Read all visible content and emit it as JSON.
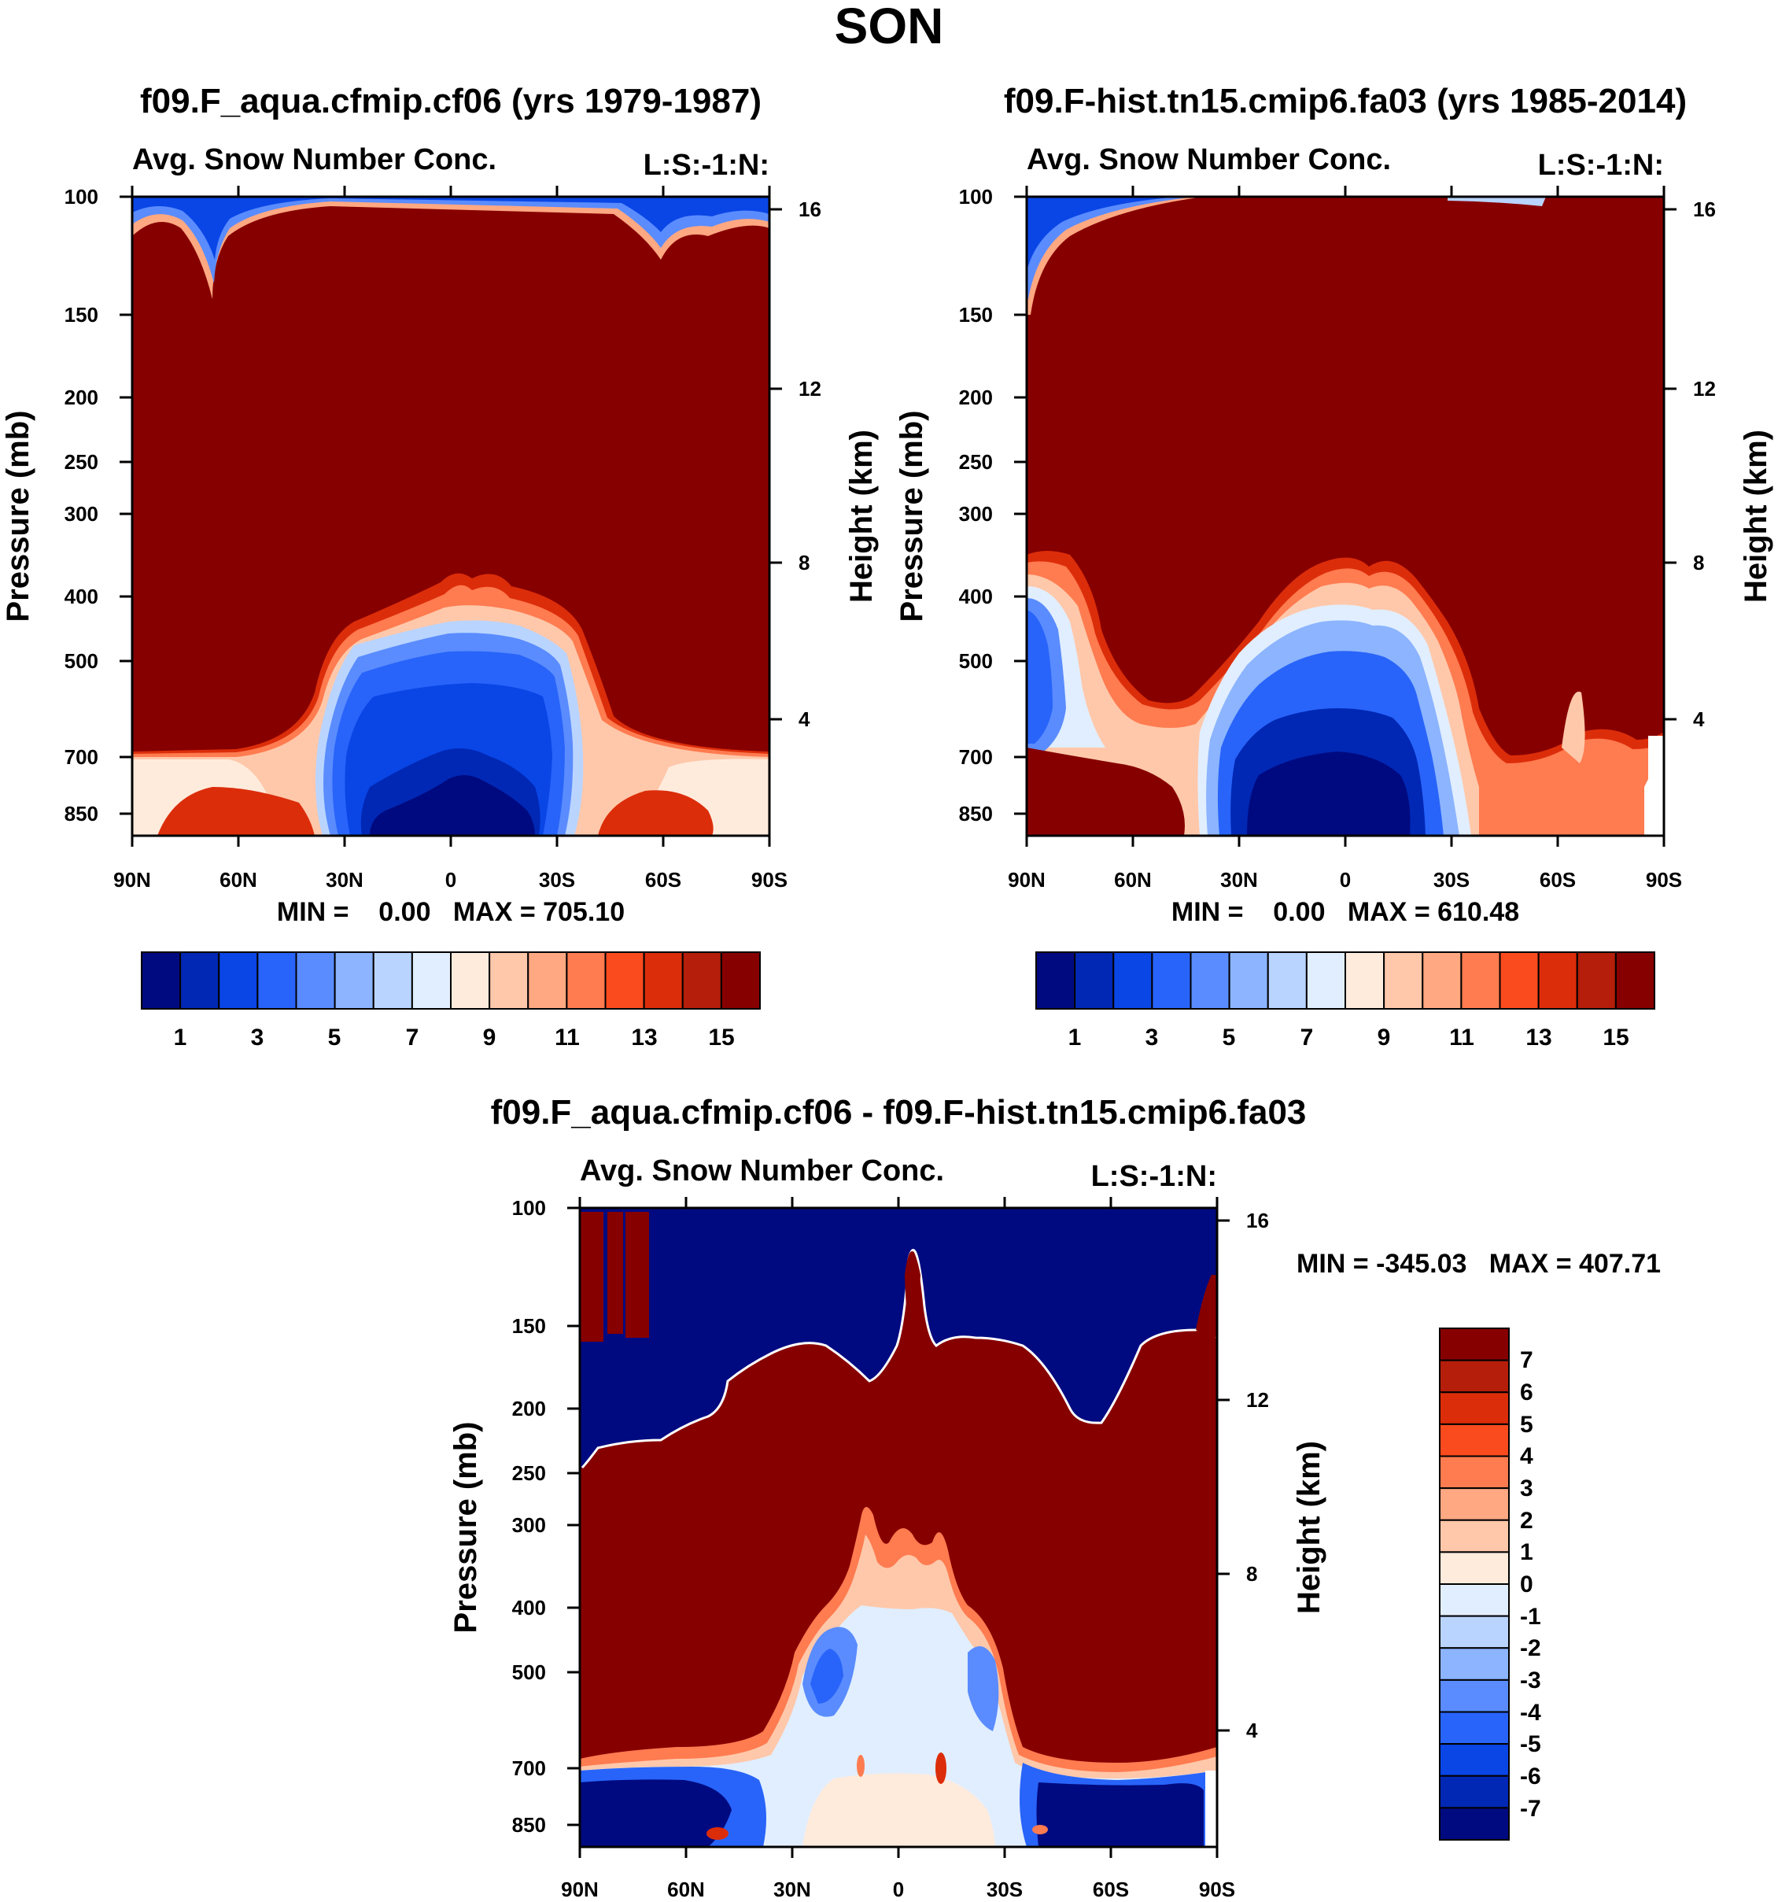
{
  "page_title": "SON",
  "chart_data": [
    {
      "type": "contour",
      "title": "f09.F_aqua.cfmip.cf06 (yrs 1979-1987)",
      "left_subtitle": "Avg. Snow Number Conc.",
      "right_subtitle": "L:S:-1:N:",
      "ylabel": "Pressure (mb)",
      "ylabel_right": "Height (km)",
      "x_ticks": [
        "90N",
        "60N",
        "30N",
        "0",
        "30S",
        "60S",
        "90S"
      ],
      "y_ticks": [
        "100",
        "150",
        "200",
        "250",
        "300",
        "400",
        "500",
        "700",
        "850"
      ],
      "y_ticks_right": [
        "16",
        "12",
        "8",
        "4"
      ],
      "min_max": "MIN =    0.00   MAX = 705.10",
      "colorbar_labels": [
        "1",
        "3",
        "5",
        "7",
        "9",
        "11",
        "13",
        "15"
      ],
      "colors": [
        "#000a80",
        "#0028b4",
        "#0a46e6",
        "#2864fa",
        "#5a8cff",
        "#8cb4ff",
        "#b9d4ff",
        "#e1eeff",
        "#ffebdc",
        "#ffc8aa",
        "#ffa882",
        "#ff7b50",
        "#fa4b1e",
        "#dc2d0a",
        "#b41e0a",
        "#870000"
      ]
    },
    {
      "type": "contour",
      "title": "f09.F-hist.tn15.cmip6.fa03 (yrs 1985-2014)",
      "left_subtitle": "Avg. Snow Number Conc.",
      "right_subtitle": "L:S:-1:N:",
      "ylabel": "Pressure (mb)",
      "ylabel_right": "Height (km)",
      "x_ticks": [
        "90N",
        "60N",
        "30N",
        "0",
        "30S",
        "60S",
        "90S"
      ],
      "y_ticks": [
        "100",
        "150",
        "200",
        "250",
        "300",
        "400",
        "500",
        "700",
        "850"
      ],
      "y_ticks_right": [
        "16",
        "12",
        "8",
        "4"
      ],
      "min_max": "MIN =    0.00   MAX = 610.48",
      "colorbar_labels": [
        "1",
        "3",
        "5",
        "7",
        "9",
        "11",
        "13",
        "15"
      ],
      "colors": [
        "#000a80",
        "#0028b4",
        "#0a46e6",
        "#2864fa",
        "#5a8cff",
        "#8cb4ff",
        "#b9d4ff",
        "#e1eeff",
        "#ffebdc",
        "#ffc8aa",
        "#ffa882",
        "#ff7b50",
        "#fa4b1e",
        "#dc2d0a",
        "#b41e0a",
        "#870000"
      ]
    },
    {
      "type": "contour",
      "title": "f09.F_aqua.cfmip.cf06 - f09.F-hist.tn15.cmip6.fa03",
      "left_subtitle": "Avg. Snow Number Conc.",
      "right_subtitle": "L:S:-1:N:",
      "ylabel": "Pressure (mb)",
      "ylabel_right": "Height (km)",
      "x_ticks": [
        "90N",
        "60N",
        "30N",
        "0",
        "30S",
        "60S",
        "90S"
      ],
      "y_ticks": [
        "100",
        "150",
        "200",
        "250",
        "300",
        "400",
        "500",
        "700",
        "850"
      ],
      "y_ticks_right": [
        "16",
        "12",
        "8",
        "4"
      ],
      "min_max": "MIN = -345.03   MAX = 407.71",
      "colorbar_labels": [
        "7",
        "6",
        "5",
        "4",
        "3",
        "2",
        "1",
        "0",
        "-1",
        "-2",
        "-3",
        "-4",
        "-5",
        "-6",
        "-7"
      ],
      "colors": [
        "#870000",
        "#b41e0a",
        "#dc2d0a",
        "#fa4b1e",
        "#ff7b50",
        "#ffa882",
        "#ffc8aa",
        "#ffebdc",
        "#e1eeff",
        "#b9d4ff",
        "#8cb4ff",
        "#5a8cff",
        "#2864fa",
        "#0a46e6",
        "#0028b4",
        "#000a80"
      ]
    }
  ]
}
